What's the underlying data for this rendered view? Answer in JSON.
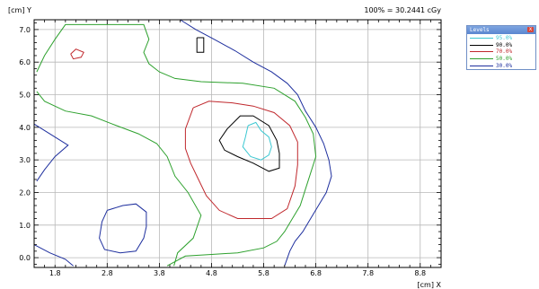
{
  "plot": {
    "y_title": "[cm] Y",
    "x_title": "[cm] X",
    "header": "100% = 30.2441 cGy",
    "x_ticks": [
      "1.8",
      "2.8",
      "3.8",
      "4.8",
      "5.8",
      "6.8",
      "7.8",
      "8.8"
    ],
    "y_ticks": [
      "7.0",
      "6.0",
      "5.0",
      "4.0",
      "3.0",
      "2.0",
      "1.0",
      "0.0"
    ]
  },
  "levels_panel": {
    "title": "Levels",
    "close_glyph": "x",
    "items": [
      {
        "label": "95.0%",
        "color": "#3cc8d2"
      },
      {
        "label": "90.0%",
        "color": "#000000"
      },
      {
        "label": "70.0%",
        "color": "#c0282d"
      },
      {
        "label": "50.0%",
        "color": "#2ea12e"
      },
      {
        "label": "30.0%",
        "color": "#1e2f9e"
      }
    ]
  },
  "chart_data": {
    "type": "contour",
    "xlabel": "[cm] X",
    "ylabel": "[cm] Y",
    "xlim": [
      1.4,
      9.2
    ],
    "ylim": [
      -0.3,
      7.3
    ],
    "series": [
      {
        "name": "95.0%",
        "color": "#3cc8d2",
        "paths": [
          [
            [
              5.5,
              4.05
            ],
            [
              5.65,
              4.15
            ],
            [
              5.75,
              3.9
            ],
            [
              5.9,
              3.7
            ],
            [
              5.95,
              3.4
            ],
            [
              5.9,
              3.15
            ],
            [
              5.75,
              3.0
            ],
            [
              5.55,
              3.1
            ],
            [
              5.4,
              3.4
            ],
            [
              5.45,
              3.7
            ],
            [
              5.5,
              4.05
            ]
          ]
        ]
      },
      {
        "name": "90.0%",
        "color": "#000000",
        "paths": [
          [
            [
              5.1,
              3.95
            ],
            [
              5.35,
              4.35
            ],
            [
              5.6,
              4.35
            ],
            [
              5.9,
              4.05
            ],
            [
              6.05,
              3.6
            ],
            [
              6.1,
              3.2
            ],
            [
              6.1,
              2.75
            ],
            [
              5.9,
              2.65
            ],
            [
              5.6,
              2.9
            ],
            [
              5.3,
              3.1
            ],
            [
              5.05,
              3.3
            ],
            [
              4.95,
              3.6
            ],
            [
              5.1,
              3.95
            ]
          ],
          [
            [
              4.52,
              6.75
            ],
            [
              4.65,
              6.75
            ],
            [
              4.65,
              6.3
            ],
            [
              4.52,
              6.3
            ],
            [
              4.52,
              6.75
            ]
          ]
        ]
      },
      {
        "name": "70.0%",
        "color": "#c0282d",
        "paths": [
          [
            [
              4.45,
              4.6
            ],
            [
              4.75,
              4.8
            ],
            [
              5.2,
              4.75
            ],
            [
              5.6,
              4.65
            ],
            [
              6.0,
              4.45
            ],
            [
              6.3,
              4.05
            ],
            [
              6.45,
              3.55
            ],
            [
              6.45,
              2.85
            ],
            [
              6.4,
              2.2
            ],
            [
              6.25,
              1.5
            ],
            [
              5.95,
              1.2
            ],
            [
              5.3,
              1.2
            ],
            [
              4.95,
              1.45
            ],
            [
              4.7,
              1.9
            ],
            [
              4.55,
              2.4
            ],
            [
              4.4,
              2.9
            ],
            [
              4.3,
              3.35
            ],
            [
              4.3,
              3.95
            ],
            [
              4.45,
              4.6
            ]
          ],
          [
            [
              2.1,
              6.25
            ],
            [
              2.2,
              6.4
            ],
            [
              2.35,
              6.3
            ],
            [
              2.3,
              6.15
            ],
            [
              2.15,
              6.1
            ],
            [
              2.1,
              6.25
            ]
          ]
        ]
      },
      {
        "name": "50.0%",
        "color": "#2ea12e",
        "paths": [
          [
            [
              1.45,
              5.7
            ],
            [
              1.6,
              6.2
            ],
            [
              1.8,
              6.7
            ],
            [
              2.0,
              7.15
            ],
            [
              3.5,
              7.15
            ],
            [
              3.6,
              6.7
            ],
            [
              3.5,
              6.3
            ],
            [
              3.6,
              5.95
            ],
            [
              3.8,
              5.7
            ],
            [
              4.1,
              5.5
            ],
            [
              4.6,
              5.4
            ],
            [
              5.4,
              5.35
            ],
            [
              6.0,
              5.2
            ],
            [
              6.4,
              4.8
            ],
            [
              6.6,
              4.3
            ],
            [
              6.75,
              3.8
            ],
            [
              6.8,
              3.1
            ],
            [
              6.7,
              2.6
            ],
            [
              6.6,
              2.1
            ],
            [
              6.5,
              1.6
            ],
            [
              6.35,
              1.2
            ],
            [
              6.2,
              0.8
            ],
            [
              6.05,
              0.5
            ],
            [
              5.8,
              0.3
            ],
            [
              5.3,
              0.15
            ],
            [
              4.8,
              0.1
            ],
            [
              4.3,
              0.05
            ],
            [
              3.95,
              -0.25
            ]
          ],
          [
            [
              4.08,
              -0.25
            ],
            [
              4.15,
              0.15
            ],
            [
              4.45,
              0.6
            ],
            [
              4.6,
              1.3
            ],
            [
              4.35,
              2.0
            ],
            [
              4.1,
              2.5
            ],
            [
              3.95,
              3.1
            ],
            [
              3.75,
              3.5
            ],
            [
              3.4,
              3.8
            ],
            [
              2.9,
              4.1
            ],
            [
              2.5,
              4.35
            ],
            [
              2.0,
              4.5
            ],
            [
              1.6,
              4.8
            ],
            [
              1.45,
              5.1
            ]
          ]
        ]
      },
      {
        "name": "30.0%",
        "color": "#1e2f9e",
        "paths": [
          [
            [
              4.2,
              7.3
            ],
            [
              4.5,
              7.0
            ],
            [
              4.85,
              6.7
            ],
            [
              5.25,
              6.35
            ],
            [
              5.6,
              6.0
            ],
            [
              5.95,
              5.7
            ],
            [
              6.25,
              5.35
            ],
            [
              6.45,
              5.0
            ],
            [
              6.6,
              4.5
            ],
            [
              6.8,
              4.0
            ],
            [
              6.95,
              3.5
            ],
            [
              7.05,
              3.0
            ],
            [
              7.1,
              2.5
            ],
            [
              7.0,
              2.0
            ],
            [
              6.85,
              1.6
            ],
            [
              6.7,
              1.2
            ],
            [
              6.55,
              0.8
            ],
            [
              6.4,
              0.5
            ],
            [
              6.3,
              0.2
            ],
            [
              6.2,
              -0.25
            ]
          ],
          [
            [
              2.8,
              1.45
            ],
            [
              3.1,
              1.6
            ],
            [
              3.35,
              1.65
            ],
            [
              3.55,
              1.4
            ],
            [
              3.55,
              0.95
            ],
            [
              3.5,
              0.6
            ],
            [
              3.35,
              0.2
            ],
            [
              3.05,
              0.15
            ],
            [
              2.75,
              0.25
            ],
            [
              2.65,
              0.6
            ],
            [
              2.7,
              1.1
            ],
            [
              2.8,
              1.45
            ]
          ],
          [
            [
              1.4,
              4.1
            ],
            [
              1.7,
              3.8
            ],
            [
              2.05,
              3.45
            ],
            [
              1.8,
              3.1
            ],
            [
              1.6,
              2.7
            ],
            [
              1.45,
              2.35
            ]
          ],
          [
            [
              1.4,
              0.4
            ],
            [
              1.7,
              0.15
            ],
            [
              2.0,
              -0.05
            ],
            [
              2.15,
              -0.25
            ]
          ]
        ]
      }
    ]
  }
}
